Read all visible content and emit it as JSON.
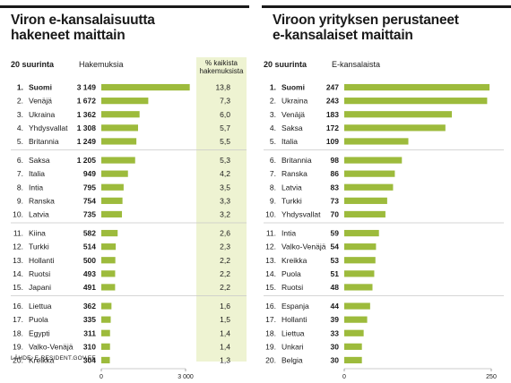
{
  "source": "LÄHDE: E-RESIDENT.GOV.EE",
  "left": {
    "title_lines": [
      "Viron e-kansalaisuutta",
      "hakeneet maittain"
    ],
    "col_rank_header": "20 suurinta",
    "col_value_header": "Hakemuksia",
    "col_pct_header": [
      "% kaikista",
      "hakemuksista"
    ]
  },
  "right": {
    "title_lines": [
      "Viroon yrityksen perustaneet",
      "e-kansalaiset maittain"
    ],
    "col_rank_header": "20 suurinta",
    "col_value_header": "E-kansalaista"
  },
  "colors": {
    "bar": "#9dbb3c",
    "pct_bg": "#eef3d2",
    "rule": "#1a1a1a",
    "separator": "#c8c8c8"
  },
  "chart_data": [
    {
      "type": "bar",
      "orientation": "horizontal",
      "title": "Viron e-kansalaisuutta hakeneet maittain",
      "xlim": [
        0,
        3000
      ],
      "x_ticks": [
        "0",
        "3 000"
      ],
      "ranks": [
        "1.",
        "2.",
        "3.",
        "4.",
        "5.",
        "6.",
        "7.",
        "8.",
        "9.",
        "10.",
        "11.",
        "12.",
        "13.",
        "14.",
        "15.",
        "16.",
        "17.",
        "18.",
        "19.",
        "20."
      ],
      "categories": [
        "Suomi",
        "Venäjä",
        "Ukraina",
        "Yhdysvallat",
        "Britannia",
        "Saksa",
        "Italia",
        "Intia",
        "Ranska",
        "Latvia",
        "Kiina",
        "Turkki",
        "Hollanti",
        "Ruotsi",
        "Japani",
        "Liettua",
        "Puola",
        "Egypti",
        "Valko-Venäjä",
        "Kreikka"
      ],
      "values": [
        3149,
        1672,
        1362,
        1308,
        1249,
        1205,
        949,
        795,
        754,
        735,
        582,
        514,
        500,
        493,
        491,
        362,
        335,
        311,
        310,
        304
      ],
      "value_labels": [
        "3 149",
        "1 672",
        "1 362",
        "1 308",
        "1 249",
        "1 205",
        "949",
        "795",
        "754",
        "735",
        "582",
        "514",
        "500",
        "493",
        "491",
        "362",
        "335",
        "311",
        "310",
        "304"
      ],
      "percent_labels": [
        "13,8",
        "7,3",
        "6,0",
        "5,7",
        "5,5",
        "5,3",
        "4,2",
        "3,5",
        "3,3",
        "3,2",
        "2,6",
        "2,3",
        "2,2",
        "2,2",
        "2,2",
        "1,6",
        "1,5",
        "1,4",
        "1,4",
        "1,3"
      ]
    },
    {
      "type": "bar",
      "orientation": "horizontal",
      "title": "Viroon yrityksen perustaneet e-kansalaiset maittain",
      "xlim": [
        0,
        250
      ],
      "x_ticks": [
        "0",
        "250"
      ],
      "ranks": [
        "1.",
        "2.",
        "3.",
        "4.",
        "5.",
        "6.",
        "7.",
        "8.",
        "9.",
        "10.",
        "11.",
        "12.",
        "13.",
        "14.",
        "15.",
        "16.",
        "17.",
        "18.",
        "19.",
        "20."
      ],
      "categories": [
        "Suomi",
        "Ukraina",
        "Venäjä",
        "Saksa",
        "Italia",
        "Britannia",
        "Ranska",
        "Latvia",
        "Turkki",
        "Yhdysvallat",
        "Intia",
        "Valko-Venäjä",
        "Kreikka",
        "Puola",
        "Ruotsi",
        "Espanja",
        "Hollanti",
        "Liettua",
        "Unkari",
        "Belgia"
      ],
      "values": [
        247,
        243,
        183,
        172,
        109,
        98,
        86,
        83,
        73,
        70,
        59,
        54,
        53,
        51,
        48,
        44,
        39,
        33,
        30,
        30
      ],
      "value_labels": [
        "247",
        "243",
        "183",
        "172",
        "109",
        "98",
        "86",
        "83",
        "73",
        "70",
        "59",
        "54",
        "53",
        "51",
        "48",
        "44",
        "39",
        "33",
        "30",
        "30"
      ]
    }
  ]
}
